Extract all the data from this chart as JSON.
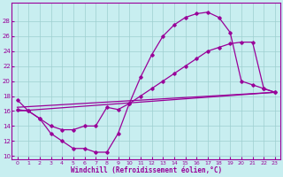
{
  "xlabel": "Windchill (Refroidissement éolien,°C)",
  "xlim": [
    -0.5,
    23.5
  ],
  "ylim": [
    9.5,
    30.5
  ],
  "yticks": [
    10,
    12,
    14,
    16,
    18,
    20,
    22,
    24,
    26,
    28
  ],
  "xticks": [
    0,
    1,
    2,
    3,
    4,
    5,
    6,
    7,
    8,
    9,
    10,
    11,
    12,
    13,
    14,
    15,
    16,
    17,
    18,
    19,
    20,
    21,
    22,
    23
  ],
  "bg_color": "#c8eef0",
  "line_color": "#990099",
  "grid_color": "#9ecfcf",
  "line1_x": [
    0,
    1,
    2,
    3,
    4,
    5,
    6,
    7,
    8,
    9,
    10,
    11,
    12,
    13,
    14,
    15,
    16,
    17,
    18,
    19,
    20,
    21,
    22,
    23
  ],
  "line1_y": [
    17.5,
    16.0,
    15.0,
    13.0,
    12.0,
    11.0,
    11.0,
    10.5,
    10.5,
    13.0,
    17.0,
    20.5,
    23.5,
    26.0,
    27.5,
    28.5,
    29.0,
    29.2,
    28.5,
    26.5,
    20.0,
    19.5,
    19.0,
    18.5
  ],
  "line2_x": [
    0,
    1,
    2,
    3,
    4,
    5,
    6,
    7,
    8,
    9,
    10,
    11,
    12,
    13,
    14,
    15,
    16,
    17,
    18,
    19,
    20,
    21,
    22,
    23
  ],
  "line2_y": [
    16.2,
    16.0,
    15.0,
    14.0,
    13.5,
    13.5,
    14.0,
    14.0,
    16.5,
    16.2,
    17.0,
    18.0,
    19.0,
    20.0,
    21.0,
    22.0,
    23.0,
    24.0,
    24.5,
    25.0,
    25.2,
    25.2,
    19.0,
    18.5
  ],
  "line3_x": [
    0,
    23
  ],
  "line3_y": [
    16.0,
    18.5
  ],
  "line4_x": [
    0,
    23
  ],
  "line4_y": [
    16.5,
    18.5
  ]
}
